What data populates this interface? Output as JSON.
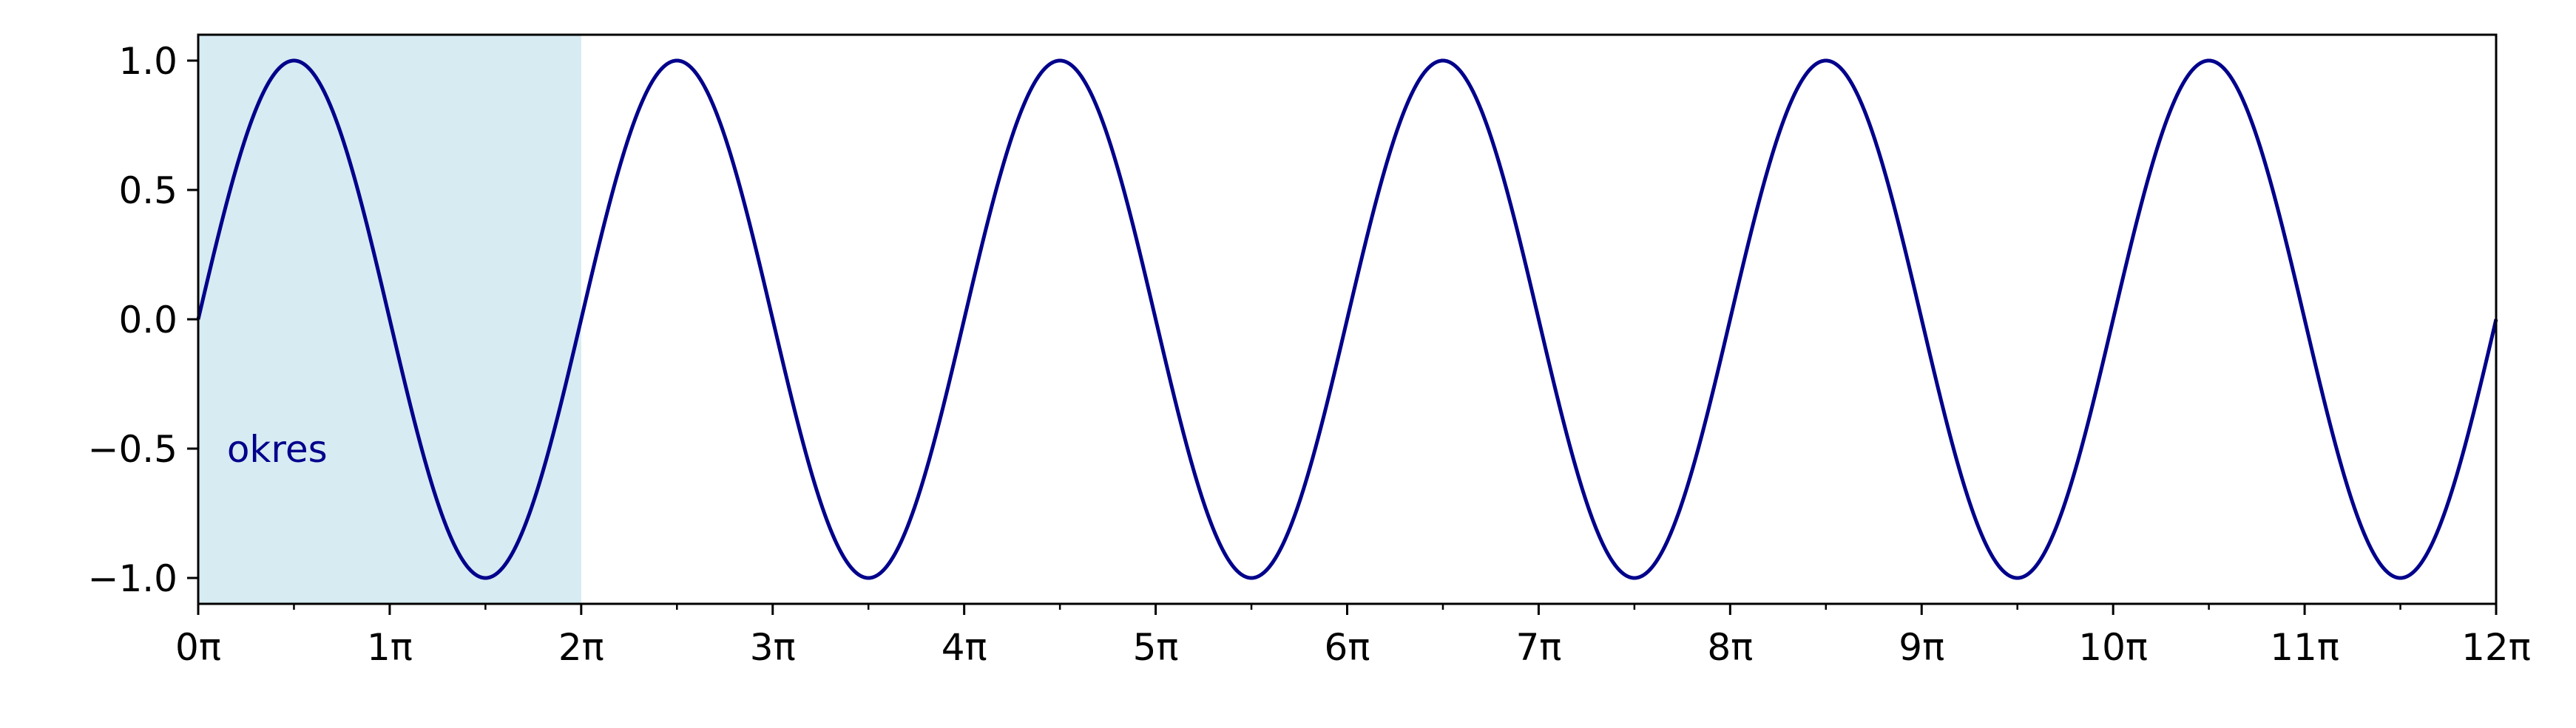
{
  "chart_data": {
    "type": "line",
    "title": "",
    "xlabel": "",
    "ylabel": "",
    "xlim_pi": [
      0,
      12
    ],
    "ylim": [
      -1.1,
      1.1
    ],
    "grid": false,
    "x_tick_labels": [
      "0π",
      "1π",
      "2π",
      "3π",
      "4π",
      "5π",
      "6π",
      "7π",
      "8π",
      "9π",
      "10π",
      "11π",
      "12π"
    ],
    "x_tick_values_pi": [
      0,
      1,
      2,
      3,
      4,
      5,
      6,
      7,
      8,
      9,
      10,
      11,
      12
    ],
    "x_minor_tick_values_pi": [
      0.5,
      1.5,
      2.5,
      3.5,
      4.5,
      5.5,
      6.5,
      7.5,
      8.5,
      9.5,
      10.5,
      11.5
    ],
    "y_tick_labels": [
      "1.0",
      "0.5",
      "0.0",
      "−0.5",
      "−1.0"
    ],
    "y_tick_values": [
      1.0,
      0.5,
      0.0,
      -0.5,
      -1.0
    ],
    "series": [
      {
        "function": "sin(x)",
        "x_range_pi": [
          0,
          12
        ],
        "color": "#00008b"
      }
    ],
    "shaded_span": {
      "x_range_pi": [
        0,
        2
      ],
      "color": "#add8e6",
      "opacity": 0.5
    },
    "annotation": {
      "text": "okres",
      "x_pi": 0.15,
      "y": -0.5,
      "color": "#00008b"
    }
  }
}
